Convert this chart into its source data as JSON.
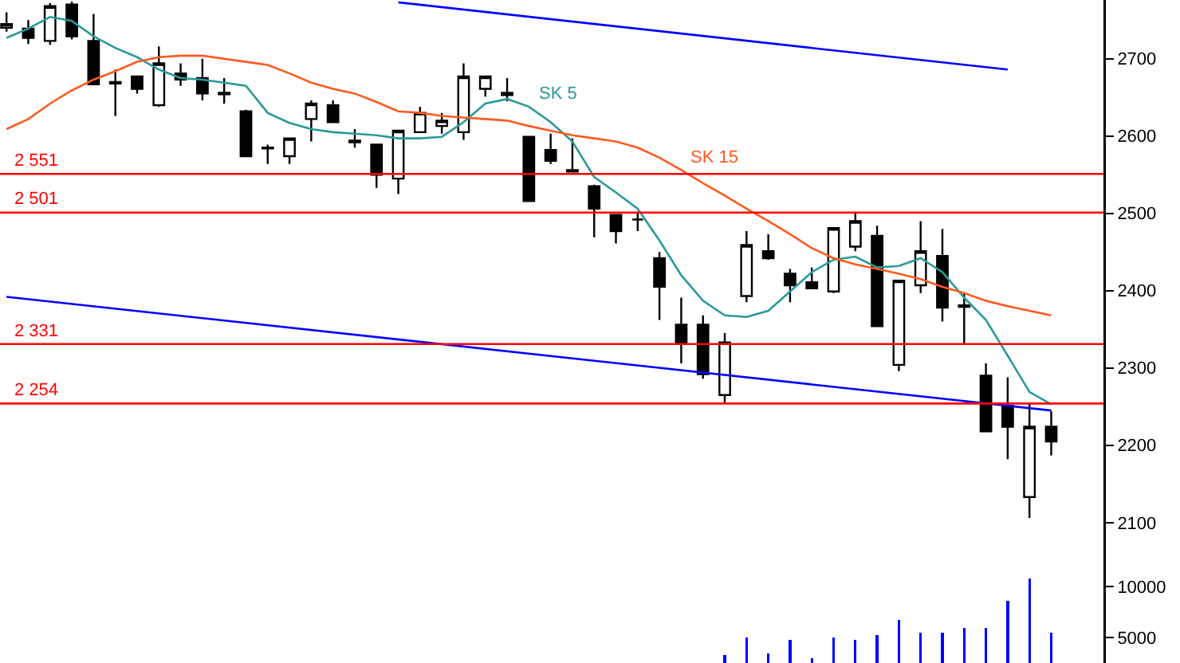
{
  "chart_data": [
    {
      "type": "candlestick",
      "categories": [
        null,
        null,
        null,
        null,
        null,
        null,
        null,
        null,
        null,
        null,
        null,
        null,
        null,
        null,
        null,
        null,
        null,
        null,
        null,
        null,
        null,
        null,
        null,
        null,
        null,
        null,
        null,
        null,
        null,
        null,
        null,
        null,
        null,
        null,
        null,
        null,
        null,
        null,
        null,
        null,
        null,
        null,
        null,
        null,
        null,
        null,
        null,
        null,
        null
      ],
      "ohlc": [
        [
          2740,
          2760,
          2735,
          2745
        ],
        [
          2739,
          2750,
          2719,
          2727
        ],
        [
          2723,
          2772,
          2718,
          2768
        ],
        [
          2770,
          2774,
          2725,
          2729
        ],
        [
          2723,
          2758,
          2667,
          2667
        ],
        [
          2670,
          2686,
          2626,
          2668
        ],
        [
          2677,
          2677,
          2655,
          2661
        ],
        [
          2640,
          2716,
          2638,
          2694
        ],
        [
          2681,
          2694,
          2665,
          2673
        ],
        [
          2675,
          2700,
          2646,
          2655
        ],
        [
          2656,
          2675,
          2642,
          2654
        ],
        [
          2632,
          2634,
          2574,
          2574
        ],
        [
          2585,
          2589,
          2564,
          2584
        ],
        [
          2574,
          2598,
          2564,
          2597
        ],
        [
          2622,
          2646,
          2593,
          2642
        ],
        [
          2640,
          2646,
          2618,
          2618
        ],
        [
          2594,
          2609,
          2585,
          2592
        ],
        [
          2589,
          2589,
          2533,
          2550
        ],
        [
          2545,
          2607,
          2525,
          2607
        ],
        [
          2605,
          2638,
          2605,
          2630
        ],
        [
          2613,
          2630,
          2603,
          2620
        ],
        [
          2605,
          2694,
          2595,
          2677
        ],
        [
          2661,
          2677,
          2651,
          2677
        ],
        [
          2656,
          2675,
          2645,
          2653
        ],
        [
          2599,
          2599,
          2516,
          2516
        ],
        [
          2582,
          2603,
          2564,
          2568
        ],
        [
          2556,
          2597,
          2554,
          2554
        ],
        [
          2535,
          2537,
          2469,
          2506
        ],
        [
          2498,
          2498,
          2461,
          2477
        ],
        [
          2492,
          2502,
          2477,
          2492
        ],
        [
          2442,
          2450,
          2362,
          2405
        ],
        [
          2356,
          2391,
          2306,
          2331
        ],
        [
          2356,
          2368,
          2286,
          2292
        ],
        [
          2265,
          2345,
          2255,
          2333
        ],
        [
          2393,
          2477,
          2385,
          2459
        ],
        [
          2451,
          2473,
          2440,
          2442
        ],
        [
          2422,
          2428,
          2385,
          2407
        ],
        [
          2411,
          2430,
          2403,
          2403
        ],
        [
          2399,
          2481,
          2397,
          2481
        ],
        [
          2457,
          2502,
          2451,
          2490
        ],
        [
          2471,
          2484,
          2354,
          2354
        ],
        [
          2304,
          2413,
          2296,
          2413
        ],
        [
          2407,
          2490,
          2397,
          2451
        ],
        [
          2445,
          2480,
          2360,
          2378
        ],
        [
          2381,
          2397,
          2331,
          2379
        ],
        [
          2290,
          2306,
          2218,
          2218
        ],
        [
          2251,
          2288,
          2182,
          2224
        ],
        [
          2133,
          2253,
          2106,
          2224
        ],
        [
          2224,
          2244,
          2187,
          2205
        ]
      ],
      "series": [
        {
          "type": "line",
          "name": "SK 5",
          "color": "#2a9a9a",
          "values": [
            2727,
            2739,
            2754,
            2749,
            2729,
            2714,
            2702,
            2686,
            2675,
            2673,
            2669,
            2665,
            2630,
            2617,
            2609,
            2605,
            2603,
            2601,
            2597,
            2597,
            2599,
            2618,
            2642,
            2648,
            2638,
            2618,
            2593,
            2547,
            2527,
            2506,
            2465,
            2420,
            2387,
            2368,
            2366,
            2374,
            2399,
            2424,
            2440,
            2444,
            2430,
            2432,
            2442,
            2424,
            2391,
            2362,
            2316,
            2269,
            2253
          ]
        },
        {
          "type": "line",
          "name": "SK 15",
          "color": "#ff5a1e",
          "values": [
            2609,
            2622,
            2642,
            2659,
            2673,
            2684,
            2696,
            2702,
            2704,
            2704,
            2700,
            2696,
            2692,
            2681,
            2669,
            2661,
            2655,
            2644,
            2632,
            2630,
            2626,
            2624,
            2622,
            2620,
            2613,
            2607,
            2601,
            2597,
            2593,
            2585,
            2572,
            2556,
            2539,
            2523,
            2506,
            2490,
            2473,
            2455,
            2442,
            2434,
            2428,
            2422,
            2415,
            2405,
            2397,
            2387,
            2380,
            2374,
            2368
          ]
        },
        {
          "type": "line",
          "color": "#0000ff",
          "values": [
            null,
            null,
            null,
            null,
            null,
            null,
            null,
            null,
            null,
            null,
            null,
            null,
            null,
            null,
            null,
            null,
            null,
            null,
            2773,
            null,
            null,
            null,
            null,
            null,
            null,
            null,
            null,
            null,
            null,
            null,
            null,
            null,
            null,
            null,
            null,
            null,
            null,
            null,
            null,
            null,
            null,
            null,
            null,
            null,
            null,
            null,
            2686,
            null,
            null
          ]
        },
        {
          "type": "line",
          "color": "#0000ff",
          "values": [
            2392,
            null,
            null,
            null,
            null,
            null,
            null,
            null,
            null,
            null,
            null,
            null,
            null,
            null,
            null,
            null,
            null,
            null,
            null,
            null,
            null,
            null,
            null,
            null,
            null,
            null,
            null,
            null,
            null,
            null,
            null,
            null,
            null,
            null,
            null,
            null,
            null,
            null,
            null,
            null,
            null,
            null,
            null,
            null,
            null,
            null,
            null,
            null,
            2245
          ]
        }
      ],
      "ref_lines": [
        {
          "axis": "y",
          "value": 2551,
          "label": "2 551",
          "color": "#ff0000"
        },
        {
          "axis": "y",
          "value": 2501,
          "label": "2 501",
          "color": "#ff0000"
        },
        {
          "axis": "y",
          "value": 2331,
          "label": "2 331",
          "color": "#ff0000"
        },
        {
          "axis": "y",
          "value": 2254,
          "label": "2 254",
          "color": "#ff0000"
        }
      ],
      "ylim": [
        2040,
        2776
      ],
      "yticks": [
        2100,
        2200,
        2300,
        2400,
        2500,
        2600,
        2700
      ],
      "tick_labels": "y"
    },
    {
      "type": "bar",
      "categories": [
        null,
        null,
        null,
        null,
        null,
        null,
        null,
        null,
        null,
        null,
        null,
        null,
        null,
        null,
        null,
        null,
        null,
        null,
        null,
        null,
        null,
        null,
        null,
        null,
        null,
        null,
        null,
        null,
        null,
        null,
        null,
        null,
        null,
        null,
        null,
        null,
        null,
        null,
        null,
        null,
        null,
        null,
        null,
        null,
        null,
        null,
        null,
        null,
        null
      ],
      "series": [
        {
          "color": "#0000ff",
          "values": [
            null,
            null,
            null,
            null,
            null,
            null,
            null,
            null,
            null,
            null,
            null,
            null,
            null,
            null,
            null,
            null,
            null,
            null,
            null,
            null,
            null,
            null,
            null,
            null,
            null,
            null,
            null,
            null,
            null,
            null,
            null,
            null,
            null,
            3300,
            5000,
            3400,
            4800,
            3000,
            5000,
            4800,
            5200,
            6700,
            5500,
            5500,
            5900,
            5900,
            8600,
            10800,
            5500
          ]
        }
      ],
      "ylim": [
        2500,
        11700
      ],
      "yticks": [
        5000,
        10000
      ],
      "tick_labels": "y"
    }
  ]
}
